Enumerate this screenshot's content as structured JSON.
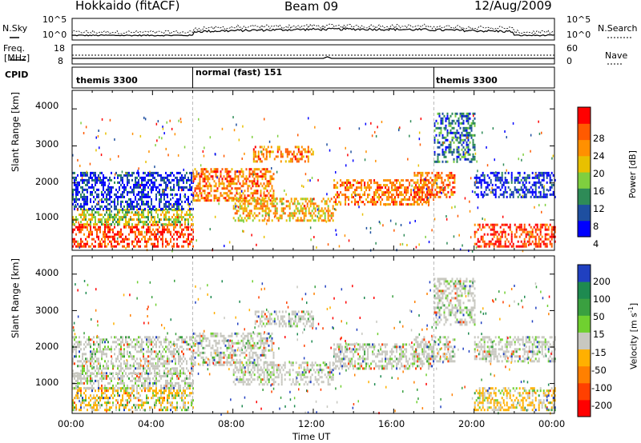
{
  "header": {
    "station": "Hokkaido (fitACF)",
    "beam": "Beam 09",
    "date": "12/Aug/2009"
  },
  "summary_panel": {
    "left_label_top": "N.Sky",
    "left_label_mid": "Freq.",
    "left_label_unit": "[MHz]",
    "left_label_cpid": "CPID",
    "left_ticks": [
      "10^5",
      "10^0",
      "18",
      "8"
    ],
    "right_ticks": [
      "10^5",
      "10^0",
      "60",
      "0"
    ],
    "right_label_top": "N.Search",
    "right_label_mid": "Nave",
    "cpid_segments": [
      {
        "label": "themis 3300",
        "start_hour": 0,
        "end_hour": 6
      },
      {
        "label": "normal (fast) 151",
        "start_hour": 6,
        "end_hour": 18
      },
      {
        "label": "themis 3300",
        "start_hour": 18,
        "end_hour": 24
      }
    ]
  },
  "power_panel": {
    "ylabel": "Slant Range [km]",
    "yticks": [
      "4000",
      "3000",
      "2000",
      "1000"
    ],
    "colorbar_label": "Power [dB]",
    "colorbar_ticks": [
      "28",
      "24",
      "20",
      "16",
      "12",
      "8",
      "4"
    ],
    "colors": [
      "#0000ff",
      "#1e4fa0",
      "#2e8b57",
      "#7fcf3f",
      "#e8c000",
      "#ff9000",
      "#ff5a00",
      "#ff0000"
    ]
  },
  "velocity_panel": {
    "ylabel": "Slant Range [km]",
    "yticks": [
      "4000",
      "3000",
      "2000",
      "1000"
    ],
    "colorbar_label": "Velocity [m s",
    "colorbar_label_sup": "-1",
    "colorbar_label_end": "]",
    "colorbar_ticks": [
      "200",
      "100",
      "50",
      "15",
      "-15",
      "-50",
      "-100",
      "-200"
    ],
    "colors": [
      "#2040c0",
      "#1e8a50",
      "#3aa040",
      "#70d030",
      "#c8c8c0",
      "#ffb000",
      "#ff8000",
      "#ff4000",
      "#ff0000"
    ]
  },
  "xaxis": {
    "ticks": [
      "00:00",
      "04:00",
      "08:00",
      "12:00",
      "16:00",
      "20:00",
      "00:00"
    ],
    "label": "Time UT"
  },
  "chart_data": {
    "type": "heatmap",
    "xlim_hours": [
      0,
      24
    ],
    "ylim_km": [
      180,
      4500
    ],
    "power_bands": [
      {
        "t0": 0,
        "t1": 6,
        "r0": 300,
        "r1": 900,
        "level": 7
      },
      {
        "t0": 0,
        "t1": 6,
        "r0": 900,
        "r1": 1300,
        "level": 4
      },
      {
        "t0": 0,
        "t1": 6,
        "r0": 1300,
        "r1": 2300,
        "level": 1
      },
      {
        "t0": 6,
        "t1": 10,
        "r0": 1500,
        "r1": 2400,
        "level": 6
      },
      {
        "t0": 8,
        "t1": 13,
        "r0": 1000,
        "r1": 1600,
        "level": 5
      },
      {
        "t0": 9,
        "t1": 12,
        "r0": 2600,
        "r1": 3000,
        "level": 6
      },
      {
        "t0": 13,
        "t1": 18,
        "r0": 1400,
        "r1": 2100,
        "level": 6
      },
      {
        "t0": 17,
        "t1": 19,
        "r0": 1600,
        "r1": 2300,
        "level": 6
      },
      {
        "t0": 18,
        "t1": 20,
        "r0": 2600,
        "r1": 3900,
        "level": 2
      },
      {
        "t0": 20,
        "t1": 24,
        "r0": 300,
        "r1": 900,
        "level": 7
      },
      {
        "t0": 20,
        "t1": 24,
        "r0": 1600,
        "r1": 2300,
        "level": 1
      }
    ]
  }
}
